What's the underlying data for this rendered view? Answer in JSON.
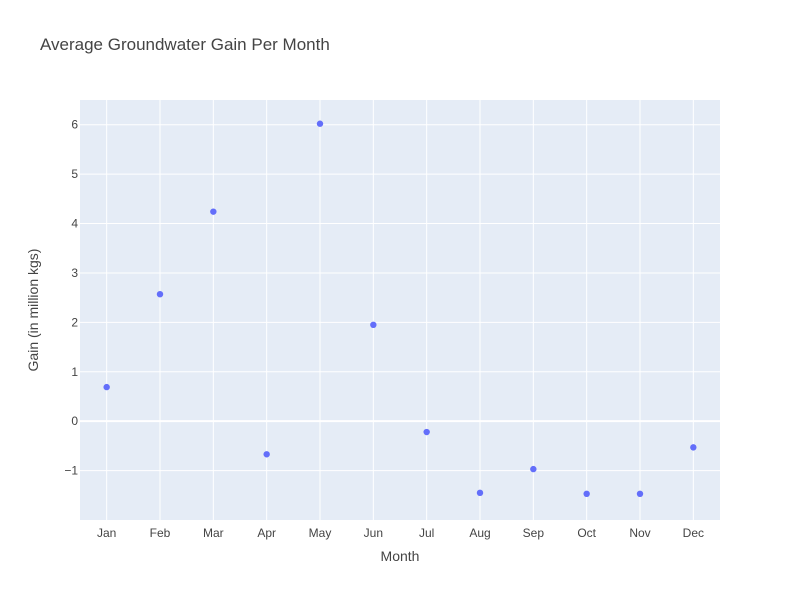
{
  "chart_data": {
    "type": "scatter",
    "title": "Average Groundwater Gain Per Month",
    "xlabel": "Month",
    "ylabel": "Gain (in million kgs)",
    "categories": [
      "Jan",
      "Feb",
      "Mar",
      "Apr",
      "May",
      "Jun",
      "Jul",
      "Aug",
      "Sep",
      "Oct",
      "Nov",
      "Dec"
    ],
    "values": [
      0.69,
      2.57,
      4.24,
      -0.67,
      6.02,
      1.95,
      -0.22,
      -1.45,
      -0.97,
      -1.47,
      -1.47,
      -0.53
    ],
    "ylim": [
      -2,
      6.5
    ],
    "yticks": [
      -1,
      0,
      1,
      2,
      3,
      4,
      5,
      6
    ],
    "ytick_labels": [
      "−1",
      "0",
      "1",
      "2",
      "3",
      "4",
      "5",
      "6"
    ],
    "grid": true,
    "colors": {
      "marker": "#636efa",
      "plot_background": "#e5ecf6",
      "grid": "#ffffff"
    }
  }
}
